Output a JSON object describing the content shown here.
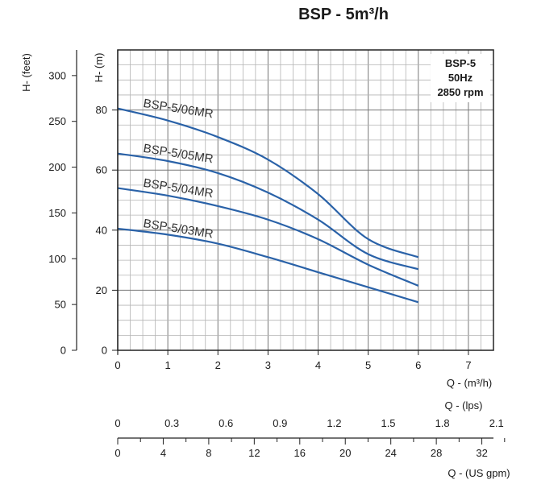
{
  "chart_data": {
    "type": "line",
    "title": "BSP - 5m³/h",
    "info_box": [
      "BSP-5",
      "50Hz",
      "2850 rpm"
    ],
    "x_axis": {
      "label": "Q - (m³/h)",
      "range": [
        0,
        7.5
      ],
      "ticks": [
        "0",
        "1",
        "2",
        "3",
        "4",
        "5",
        "6",
        "7"
      ]
    },
    "y_axis_left": {
      "label": "H- (m)",
      "range": [
        0,
        100
      ],
      "ticks": [
        "0",
        "20",
        "40",
        "60",
        "80"
      ]
    },
    "y_axis_feet": {
      "label": "H- (feet)",
      "range": [
        0,
        328
      ],
      "ticks": [
        "0",
        "50",
        "100",
        "150",
        "200",
        "250",
        "300"
      ]
    },
    "axis_lps": {
      "label": "Q - (lps)",
      "ticks": [
        "0",
        "0.3",
        "0.6",
        "0.9",
        "1.2",
        "1.5",
        "1.8",
        "2.1"
      ]
    },
    "axis_gpm": {
      "label": "Q - (US gpm)",
      "ticks": [
        "0",
        "4",
        "8",
        "12",
        "16",
        "20",
        "24",
        "28",
        "32"
      ]
    },
    "grid": true,
    "series": [
      {
        "name": "BSP-5/06MR",
        "color": "#2a62a8",
        "x": [
          0,
          1,
          2,
          3,
          4,
          5,
          6
        ],
        "y": [
          80.5,
          76.5,
          71,
          63.5,
          52,
          37,
          31
        ]
      },
      {
        "name": "BSP-5/05MR",
        "color": "#2a62a8",
        "x": [
          0,
          1,
          2,
          3,
          4,
          5,
          6
        ],
        "y": [
          65.5,
          63,
          59,
          52.5,
          43.5,
          32,
          27
        ]
      },
      {
        "name": "BSP-5/04MR",
        "color": "#2a62a8",
        "x": [
          0,
          1,
          2,
          3,
          4,
          5,
          6
        ],
        "y": [
          54,
          51.5,
          48,
          43.5,
          37,
          28.5,
          21.5
        ]
      },
      {
        "name": "BSP-5/03MR",
        "color": "#2a62a8",
        "x": [
          0,
          1,
          2,
          3,
          4,
          5,
          6
        ],
        "y": [
          40.5,
          38.5,
          35.5,
          31,
          26,
          21,
          16
        ]
      }
    ]
  }
}
